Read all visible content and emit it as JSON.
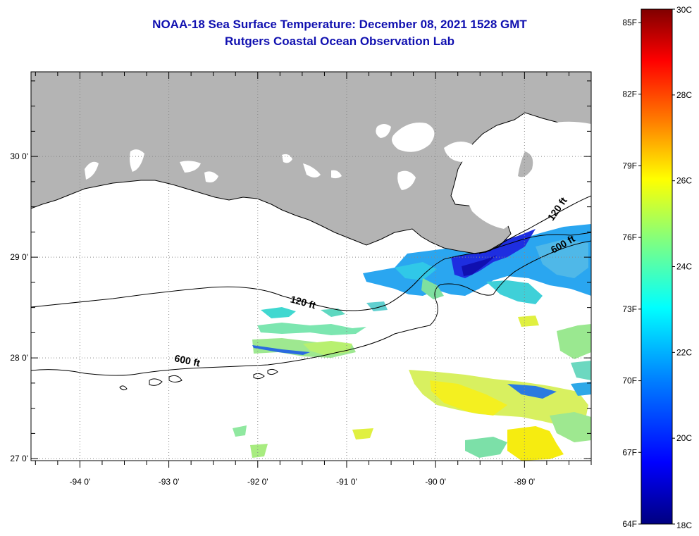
{
  "title": {
    "line1": "NOAA-18 Sea Surface Temperature:  December 08, 2021 1528 GMT",
    "line2": "Rutgers Coastal Ocean Observation Lab"
  },
  "map": {
    "lon_range": [
      -94.55,
      -88.25
    ],
    "lat_range": [
      26.98,
      30.84
    ],
    "lon_ticks": [
      {
        "value": -94,
        "label": "-94 0'"
      },
      {
        "value": -93,
        "label": "-93 0'"
      },
      {
        "value": -92,
        "label": "-92 0'"
      },
      {
        "value": -91,
        "label": "-91 0'"
      },
      {
        "value": -90,
        "label": "-90 0'"
      },
      {
        "value": -89,
        "label": "-89 0'"
      }
    ],
    "lat_ticks": [
      {
        "value": 30,
        "label": "30 0'"
      },
      {
        "value": 29,
        "label": "29 0'"
      },
      {
        "value": 28,
        "label": "28 0'"
      },
      {
        "value": 27,
        "label": "27 0'"
      }
    ],
    "grid": "dotted",
    "land_color": "#b4b4b4",
    "no_data_color": "#ffffff",
    "contour_labels": [
      {
        "text": "120 ft",
        "lon": -91.5,
        "lat": 28.52
      },
      {
        "text": "600 ft",
        "lon": -92.8,
        "lat": 27.94
      },
      {
        "text": "120 ft",
        "lon": -88.6,
        "lat": 29.46
      },
      {
        "text": "600 ft",
        "lon": -88.55,
        "lat": 29.1
      }
    ]
  },
  "colorbar": {
    "min_c": 18,
    "max_c": 30,
    "celsius_labels": [
      "30C",
      "28C",
      "26C",
      "24C",
      "22C",
      "20C",
      "18C"
    ],
    "fahrenheit_labels": [
      "85F",
      "82F",
      "79F",
      "76F",
      "73F",
      "70F",
      "67F",
      "64F"
    ],
    "colormap": [
      "#000080",
      "#0000ff",
      "#0080ff",
      "#00ffff",
      "#80ff80",
      "#ffff00",
      "#ff8000",
      "#ff0000",
      "#800000"
    ]
  }
}
